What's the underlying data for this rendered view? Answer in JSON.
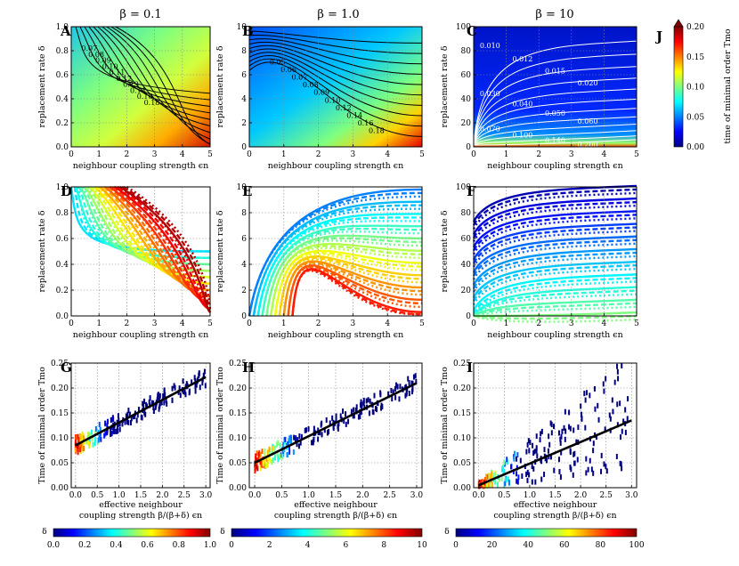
{
  "panels": {
    "A": {
      "label": "A",
      "beta_title": "β = 0.1"
    },
    "B": {
      "label": "B",
      "beta_title": "β = 1.0"
    },
    "C": {
      "label": "C",
      "beta_title": "β = 10"
    },
    "D": {
      "label": "D"
    },
    "E": {
      "label": "E"
    },
    "F": {
      "label": "F"
    },
    "G": {
      "label": "G"
    },
    "H": {
      "label": "H"
    },
    "I": {
      "label": "I"
    },
    "J": {
      "label": "J"
    }
  },
  "axes_text": {
    "x_coupling": "neighbour coupling strength ϵn",
    "y_replacement": "replacement rate δ",
    "x_effective_line1": "effective neighbour",
    "x_effective_line2": "coupling strength β/(β+δ) ϵn",
    "y_tmo": "Time of minimal order Tmo",
    "colorbar_J": "time of minimal order Tmo",
    "delta_symbol": "δ"
  },
  "colors": {
    "jet": [
      "#00007f",
      "#0000ff",
      "#007fff",
      "#00ffff",
      "#7fff7f",
      "#ffff00",
      "#ff7f00",
      "#ff0000",
      "#7f0000"
    ]
  },
  "chart_data": [
    {
      "panel": "A",
      "type": "heatmap",
      "xlim": [
        0,
        5
      ],
      "ylim": [
        0,
        1.0
      ],
      "xticks": [
        0,
        1,
        2,
        3,
        4,
        5
      ],
      "yticks": [
        0.0,
        0.2,
        0.4,
        0.6,
        0.8,
        1.0
      ],
      "contour_labels": [
        "0.07",
        "0.08",
        "0.09",
        "0.10",
        "0.11",
        "0.12",
        "0.13",
        "0.14",
        "0.16",
        "0.18"
      ]
    },
    {
      "panel": "B",
      "type": "heatmap",
      "xlim": [
        0,
        5
      ],
      "ylim": [
        0,
        10
      ],
      "xticks": [
        0,
        1,
        2,
        3,
        4,
        5
      ],
      "yticks": [
        0,
        2,
        4,
        6,
        8,
        10
      ],
      "contour_labels": [
        "0.05",
        "0.06",
        "0.07",
        "0.08",
        "0.09",
        "0.10",
        "0.12",
        "0.14",
        "0.16",
        "0.18"
      ]
    },
    {
      "panel": "C",
      "type": "heatmap",
      "xlim": [
        0,
        5
      ],
      "ylim": [
        0,
        100
      ],
      "xticks": [
        0,
        1,
        2,
        3,
        4,
        5
      ],
      "yticks": [
        0,
        20,
        40,
        60,
        80,
        100
      ],
      "contour_labels": [
        "0.010",
        "0.012",
        "0.015",
        "0.020",
        "0.030",
        "0.040",
        "0.050",
        "0.060",
        "0.070",
        "0.100",
        "0.140",
        "0.200"
      ]
    },
    {
      "panel": "D",
      "type": "line",
      "xlim": [
        0,
        5
      ],
      "ylim": [
        0,
        1.0
      ],
      "xticks": [
        0,
        1,
        2,
        3,
        4,
        5
      ],
      "yticks": [
        0.0,
        0.2,
        0.4,
        0.6,
        0.8,
        1.0
      ]
    },
    {
      "panel": "E",
      "type": "line",
      "xlim": [
        0,
        5
      ],
      "ylim": [
        0,
        10
      ],
      "xticks": [
        0,
        1,
        2,
        3,
        4,
        5
      ],
      "yticks": [
        0,
        2,
        4,
        6,
        8,
        10
      ]
    },
    {
      "panel": "F",
      "type": "line",
      "xlim": [
        0,
        5
      ],
      "ylim": [
        0,
        100
      ],
      "xticks": [
        0,
        1,
        2,
        3,
        4,
        5
      ],
      "yticks": [
        0,
        20,
        40,
        60,
        80,
        100
      ]
    },
    {
      "panel": "G",
      "type": "scatter",
      "xlim": [
        -0.1,
        3.1
      ],
      "ylim": [
        0,
        0.25
      ],
      "xticks": [
        0.0,
        0.5,
        1.0,
        1.5,
        2.0,
        2.5,
        3.0
      ],
      "yticks": [
        0.0,
        0.05,
        0.1,
        0.15,
        0.2,
        0.25
      ],
      "fit": {
        "x": [
          0,
          3.0
        ],
        "y": [
          0.085,
          0.222
        ]
      }
    },
    {
      "panel": "H",
      "type": "scatter",
      "xlim": [
        -0.1,
        3.1
      ],
      "ylim": [
        0,
        0.25
      ],
      "xticks": [
        0.0,
        0.5,
        1.0,
        1.5,
        2.0,
        2.5,
        3.0
      ],
      "yticks": [
        0.0,
        0.05,
        0.1,
        0.15,
        0.2,
        0.25
      ],
      "fit": {
        "x": [
          0,
          3.0
        ],
        "y": [
          0.05,
          0.21
        ]
      }
    },
    {
      "panel": "I",
      "type": "scatter",
      "xlim": [
        -0.1,
        3.1
      ],
      "ylim": [
        0,
        0.25
      ],
      "xticks": [
        0.0,
        0.5,
        1.0,
        1.5,
        2.0,
        2.5,
        3.0
      ],
      "yticks": [
        0.0,
        0.05,
        0.1,
        0.15,
        0.2,
        0.25
      ],
      "fit": {
        "x": [
          0,
          3.0
        ],
        "y": [
          0.005,
          0.135
        ]
      }
    },
    {
      "panel": "J",
      "type": "colorbar",
      "range": [
        0.0,
        0.2
      ],
      "ticks": [
        0.0,
        0.05,
        0.1,
        0.15,
        0.2
      ]
    },
    {
      "panel": "G-colorbar",
      "type": "colorbar",
      "range": [
        0.0,
        1.0
      ],
      "ticks": [
        0.0,
        0.2,
        0.4,
        0.6,
        0.8,
        1.0
      ]
    },
    {
      "panel": "H-colorbar",
      "type": "colorbar",
      "range": [
        0,
        10
      ],
      "ticks": [
        0,
        2,
        4,
        6,
        8,
        10
      ]
    },
    {
      "panel": "I-colorbar",
      "type": "colorbar",
      "range": [
        0,
        100
      ],
      "ticks": [
        0,
        20,
        40,
        60,
        80,
        100
      ]
    }
  ]
}
